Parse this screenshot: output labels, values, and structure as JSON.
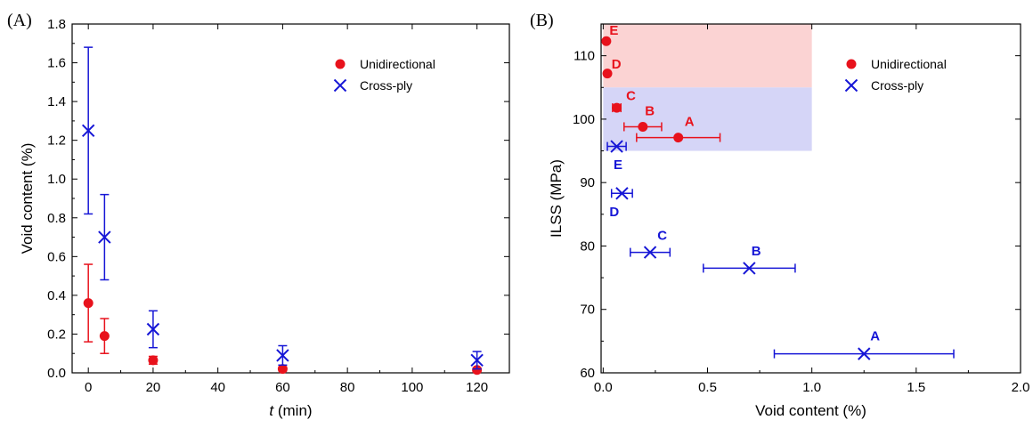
{
  "colors": {
    "unidirectional": "#e8121c",
    "crossply": "#1616d6",
    "region_red": "#fbd3d3",
    "region_blue": "#d5d5f7"
  },
  "chart_data": [
    {
      "panel": "(A)",
      "type": "scatter",
      "xlabel_italic": "t",
      "xlabel_rest": " (min)",
      "ylabel": "Void content (%)",
      "xlim": [
        -5,
        130
      ],
      "ylim": [
        0,
        1.8
      ],
      "xticks": [
        "0",
        "20",
        "40",
        "60",
        "80",
        "100",
        "120"
      ],
      "xtick_values": [
        0,
        20,
        40,
        60,
        80,
        100,
        120
      ],
      "yticks": [
        "0.0",
        "0.2",
        "0.4",
        "0.6",
        "0.8",
        "1.0",
        "1.2",
        "1.4",
        "1.6",
        "1.8"
      ],
      "ytick_values": [
        0,
        0.2,
        0.4,
        0.6,
        0.8,
        1.0,
        1.2,
        1.4,
        1.6,
        1.8
      ],
      "legend": "top-right",
      "series": [
        {
          "name": "Unidirectional",
          "marker": "circle",
          "color_key": "unidirectional",
          "points": [
            {
              "x": 0,
              "y": 0.36,
              "err": 0.2
            },
            {
              "x": 5,
              "y": 0.19,
              "err": 0.09
            },
            {
              "x": 20,
              "y": 0.065,
              "err": 0.02
            },
            {
              "x": 60,
              "y": 0.02,
              "err": 0.01
            },
            {
              "x": 120,
              "y": 0.015,
              "err": 0.01
            }
          ]
        },
        {
          "name": "Cross-ply",
          "marker": "x",
          "color_key": "crossply",
          "points": [
            {
              "x": 0,
              "y": 1.25,
              "err": 0.43
            },
            {
              "x": 5,
              "y": 0.7,
              "err": 0.22
            },
            {
              "x": 20,
              "y": 0.225,
              "err": 0.095
            },
            {
              "x": 60,
              "y": 0.09,
              "err": 0.05
            },
            {
              "x": 120,
              "y": 0.065,
              "err": 0.045
            }
          ]
        }
      ]
    },
    {
      "panel": "(B)",
      "type": "scatter",
      "xlabel": "Void content (%)",
      "ylabel": "ILSS (MPa)",
      "xlim": [
        -0.01,
        2.0
      ],
      "ylim": [
        60,
        115
      ],
      "xticks": [
        "0.0",
        "0.5",
        "1.0",
        "1.5",
        "2.0"
      ],
      "xtick_values": [
        0,
        0.5,
        1.0,
        1.5,
        2.0
      ],
      "yticks": [
        "60",
        "70",
        "80",
        "90",
        "100",
        "110"
      ],
      "ytick_values": [
        60,
        70,
        80,
        90,
        100,
        110
      ],
      "legend": "top-right",
      "regions": [
        {
          "x0": 0,
          "x1": 1.0,
          "y0": 105,
          "y1": 115,
          "color_key": "region_red"
        },
        {
          "x0": 0,
          "x1": 1.0,
          "y0": 95,
          "y1": 105,
          "color_key": "region_blue"
        }
      ],
      "series": [
        {
          "name": "Unidirectional",
          "marker": "circle",
          "color_key": "unidirectional",
          "points": [
            {
              "label": "E",
              "x": 0.015,
              "y": 112.3,
              "xerr": 0,
              "lx": 0.03,
              "ly": 113.3
            },
            {
              "label": "D",
              "x": 0.02,
              "y": 107.2,
              "xerr": 0,
              "lx": 0.04,
              "ly": 108.0
            },
            {
              "label": "C",
              "x": 0.065,
              "y": 101.8,
              "xerr": 0.02,
              "lx": 0.11,
              "ly": 103.0
            },
            {
              "label": "B",
              "x": 0.19,
              "y": 98.8,
              "xerr": 0.09,
              "lx": 0.2,
              "ly": 100.6
            },
            {
              "label": "A",
              "x": 0.36,
              "y": 97.1,
              "xerr": 0.2,
              "lx": 0.39,
              "ly": 98.9
            }
          ]
        },
        {
          "name": "Cross-ply",
          "marker": "x",
          "color_key": "crossply",
          "points": [
            {
              "label": "E",
              "x": 0.065,
              "y": 95.7,
              "xerr": 0.045,
              "lx": 0.05,
              "ly": 92.1
            },
            {
              "label": "D",
              "x": 0.09,
              "y": 88.3,
              "xerr": 0.05,
              "lx": 0.03,
              "ly": 84.7
            },
            {
              "label": "C",
              "x": 0.225,
              "y": 79.0,
              "xerr": 0.095,
              "lx": 0.26,
              "ly": 81.0
            },
            {
              "label": "B",
              "x": 0.7,
              "y": 76.5,
              "xerr": 0.22,
              "lx": 0.71,
              "ly": 78.5
            },
            {
              "label": "A",
              "x": 1.25,
              "y": 63.0,
              "xerr": 0.43,
              "lx": 1.28,
              "ly": 65.1
            }
          ]
        }
      ]
    }
  ]
}
